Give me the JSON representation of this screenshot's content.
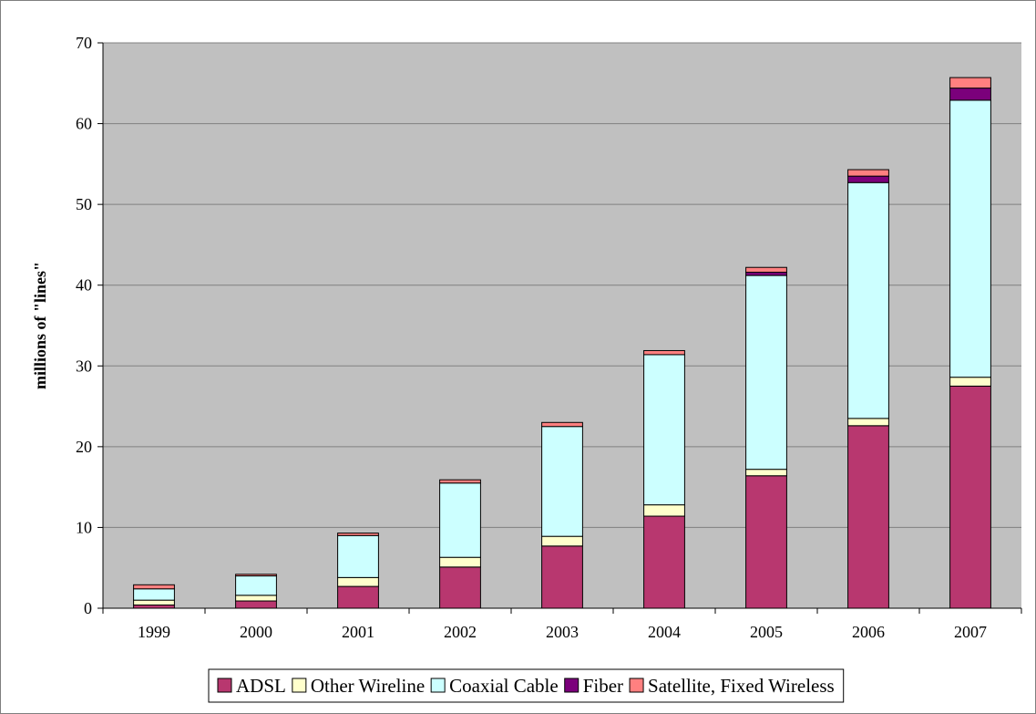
{
  "colors": {
    "plot_background": "#c0c0c0",
    "gridline": "#808080",
    "bar_outline": "#000000"
  },
  "chart_data": {
    "type": "bar",
    "stacked": true,
    "title": "",
    "xlabel": "",
    "ylabel": "millions of \"lines\"",
    "ylim": [
      0,
      70
    ],
    "yticks": [
      0,
      10,
      20,
      30,
      40,
      50,
      60,
      70
    ],
    "grid": true,
    "legend_position": "bottom",
    "categories": [
      "1999",
      "2000",
      "2001",
      "2002",
      "2003",
      "2004",
      "2005",
      "2006",
      "2007"
    ],
    "series": [
      {
        "name": "ADSL",
        "color": "#b8376f",
        "values": [
          0.4,
          0.9,
          2.7,
          5.1,
          7.7,
          11.4,
          16.4,
          22.6,
          27.5
        ]
      },
      {
        "name": "Other Wireline",
        "color": "#ffffcc",
        "values": [
          0.6,
          0.7,
          1.1,
          1.2,
          1.2,
          1.4,
          0.8,
          0.9,
          1.1
        ]
      },
      {
        "name": "Coaxial Cable",
        "color": "#ccffff",
        "values": [
          1.4,
          2.4,
          5.2,
          9.2,
          13.6,
          18.6,
          24.0,
          29.2,
          34.3
        ]
      },
      {
        "name": "Fiber",
        "color": "#7b007b",
        "values": [
          0.0,
          0.0,
          0.0,
          0.0,
          0.0,
          0.0,
          0.4,
          0.8,
          1.5
        ]
      },
      {
        "name": "Satellite, Fixed Wireless",
        "color": "#ff8080",
        "values": [
          0.5,
          0.2,
          0.3,
          0.4,
          0.5,
          0.5,
          0.6,
          0.8,
          1.3
        ]
      }
    ]
  }
}
